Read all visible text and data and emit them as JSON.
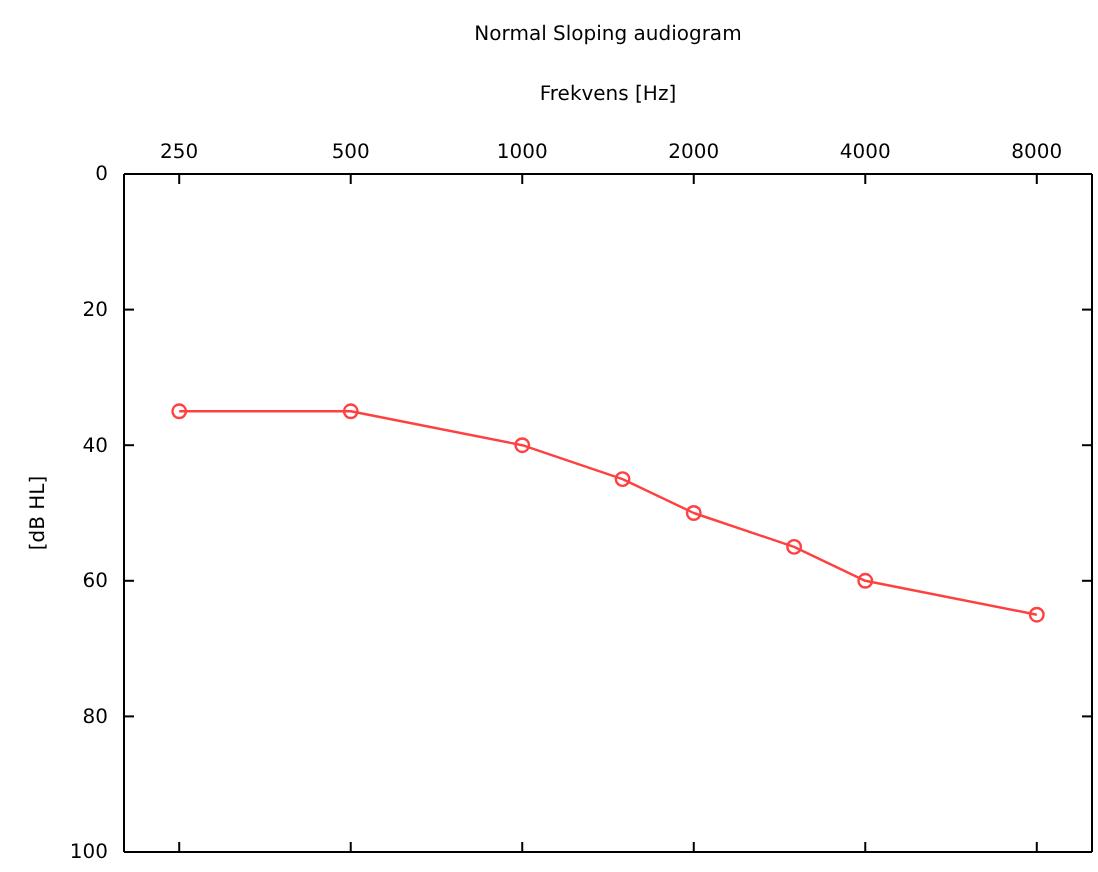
{
  "chart_data": {
    "type": "line",
    "title": "Normal Sloping audiogram",
    "xlabel": "Frekvens [Hz]",
    "ylabel": "[dB HL]",
    "x": [
      250,
      500,
      1000,
      1500,
      2000,
      3000,
      4000,
      8000
    ],
    "series": [
      {
        "color": "#ff4040",
        "values": [
          35,
          35,
          40,
          45,
          50,
          55,
          60,
          65
        ]
      }
    ],
    "xlim": [
      200,
      10000
    ],
    "xticks": [
      250,
      500,
      1000,
      2000,
      4000,
      8000
    ],
    "ylim": [
      100,
      0
    ],
    "yticks": [
      0,
      20,
      40,
      60,
      80,
      100
    ],
    "log": "x",
    "marker": "circle",
    "line_style": "solid"
  }
}
